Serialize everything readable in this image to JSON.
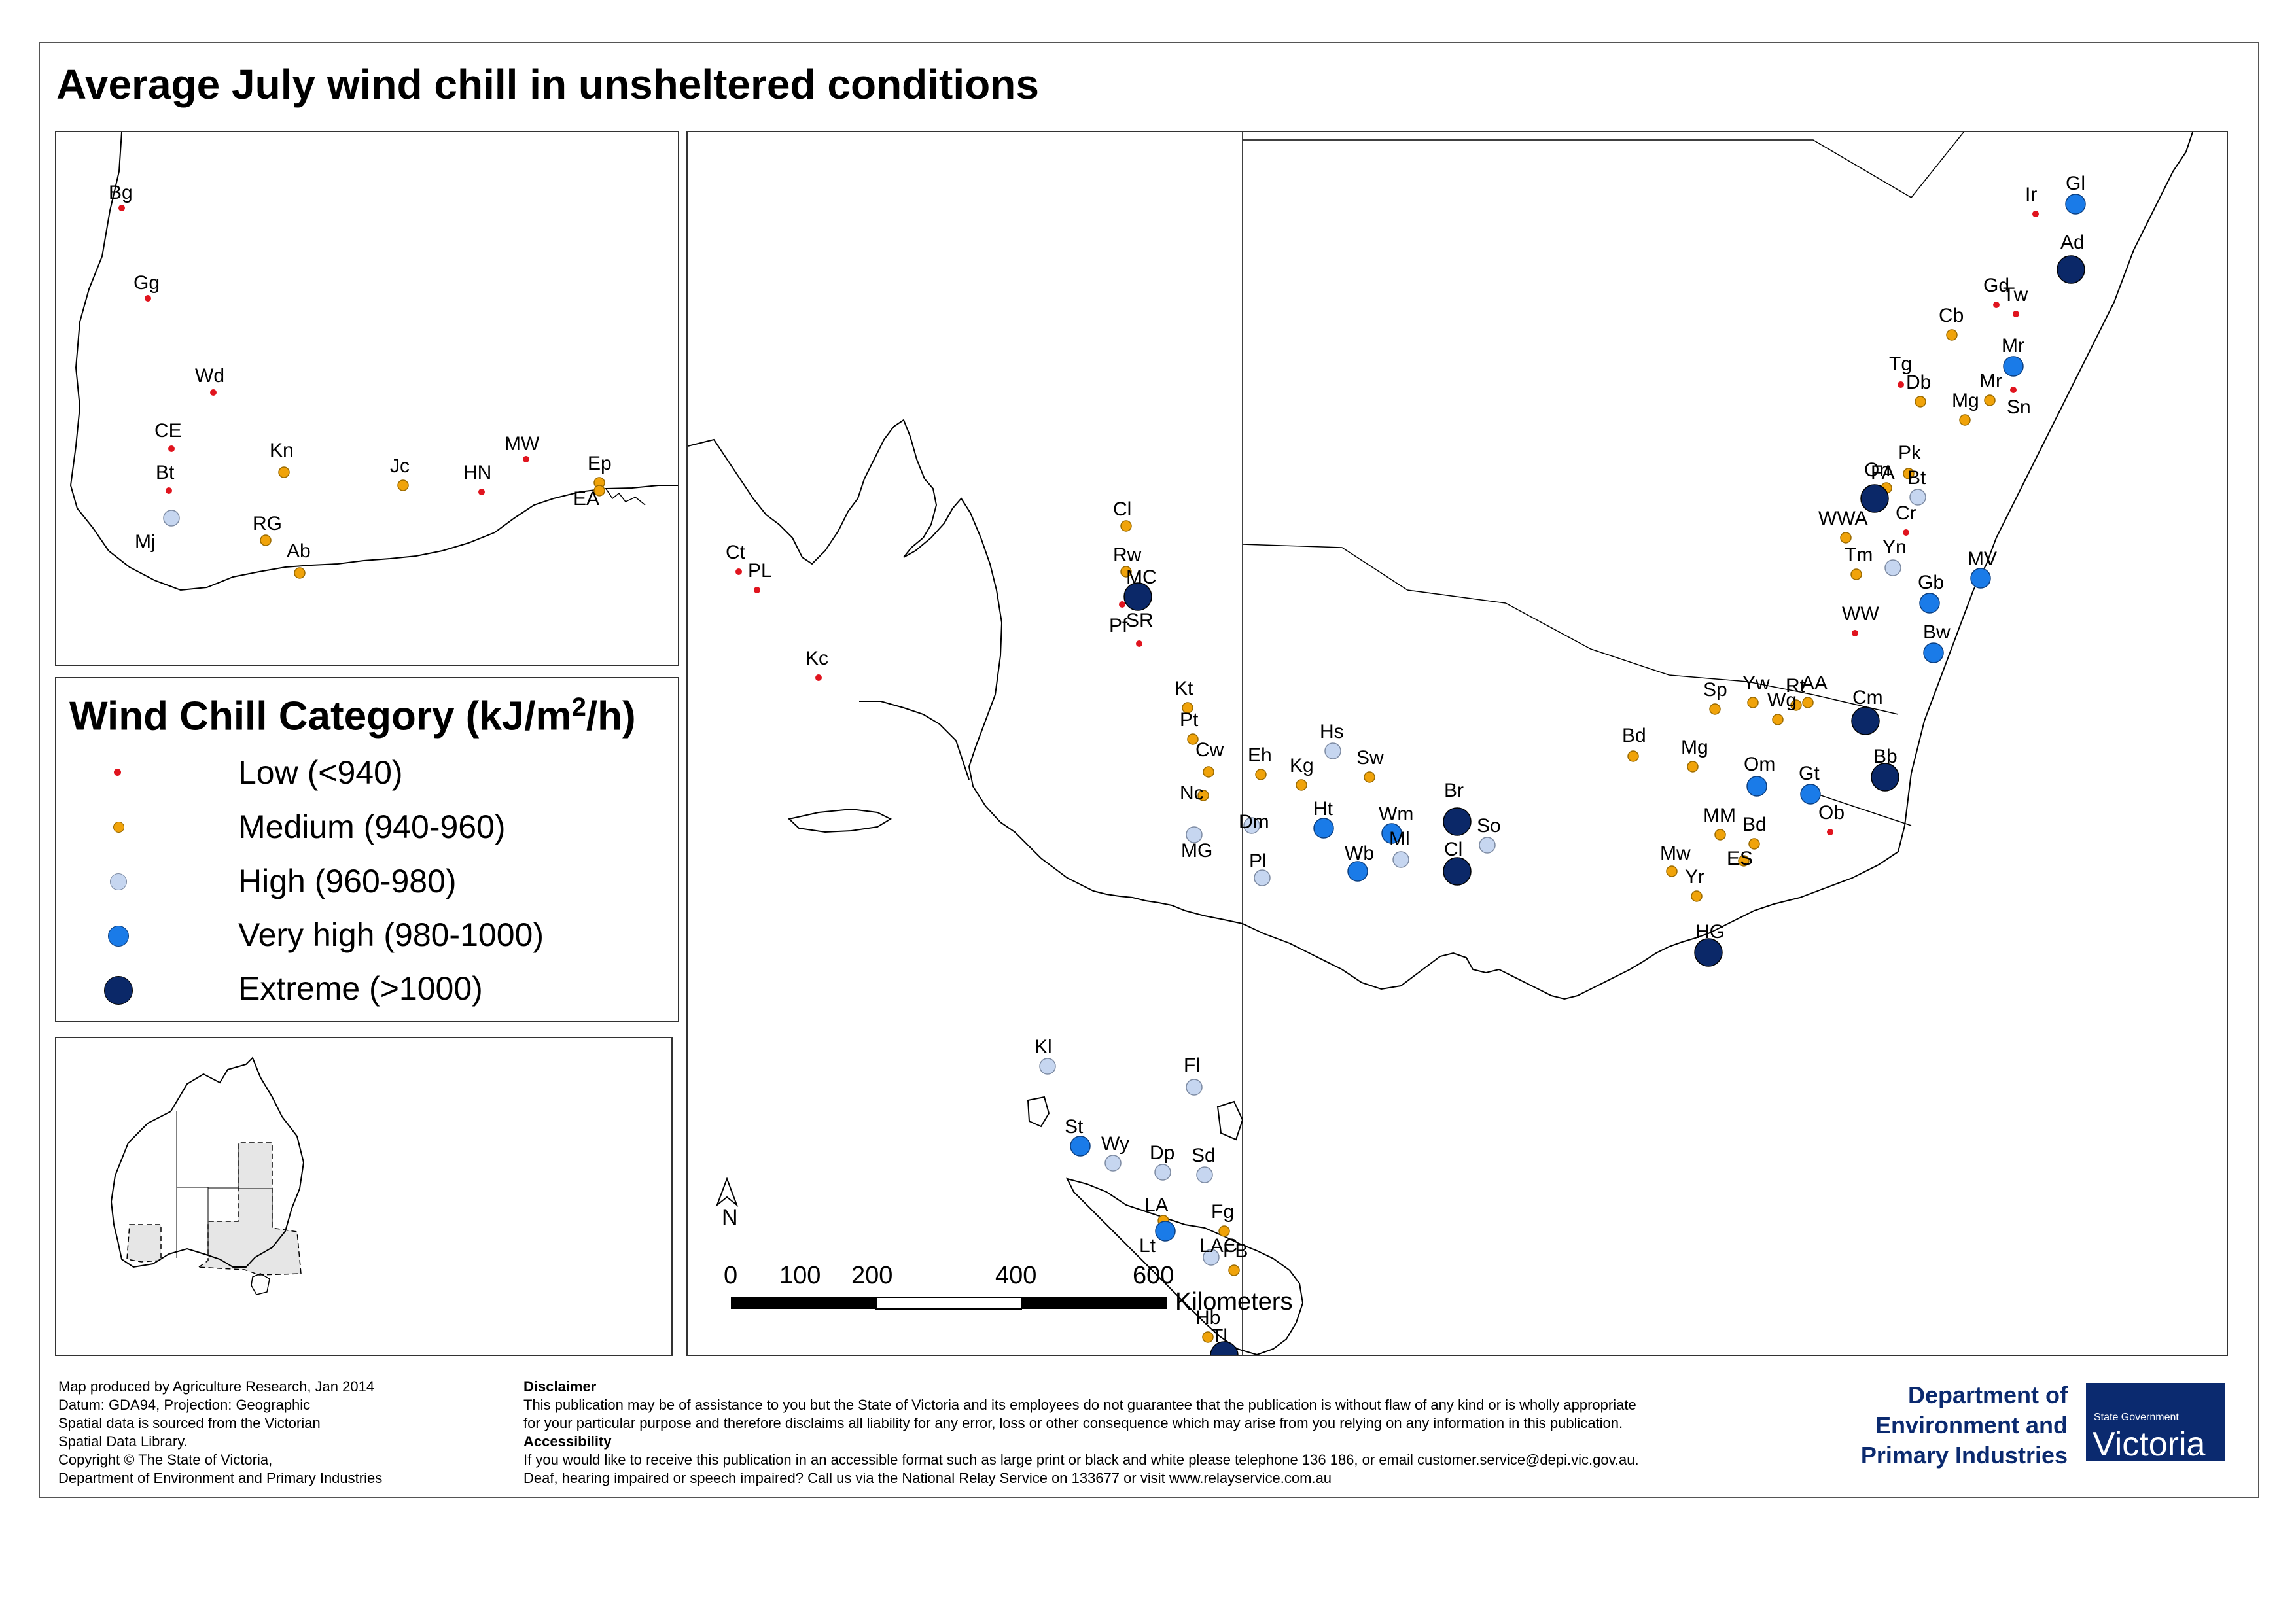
{
  "title": "Average July wind chill in unsheltered conditions",
  "legend": {
    "title_main": "Wind Chill Category (kJ/m",
    "title_sup": "2",
    "title_end": "/h)",
    "items": [
      {
        "key": "low",
        "label": "Low (<940)",
        "color": "#e0141e"
      },
      {
        "key": "medium",
        "label": "Medium (940-960)",
        "color": "#f0a30a"
      },
      {
        "key": "high",
        "label": "High (960-980)",
        "color": "#c6d6f0"
      },
      {
        "key": "very_high",
        "label": "Very high (980-1000)",
        "color": "#1a7be8"
      },
      {
        "key": "extreme",
        "label": "Extreme (>1000)",
        "color": "#0b2868"
      }
    ]
  },
  "scale_bar": {
    "ticks": [
      "0",
      "100",
      "200",
      "400",
      "600"
    ],
    "unit": "Kilometers",
    "north_label": "N"
  },
  "stations_inset_wa": [
    {
      "code": "Bg",
      "category": "low"
    },
    {
      "code": "Gg",
      "category": "low"
    },
    {
      "code": "Wd",
      "category": "low"
    },
    {
      "code": "CE",
      "category": "low"
    },
    {
      "code": "Bt",
      "category": "low"
    },
    {
      "code": "Mj",
      "category": "high"
    },
    {
      "code": "Kn",
      "category": "medium"
    },
    {
      "code": "RG",
      "category": "medium"
    },
    {
      "code": "Ab",
      "category": "medium"
    },
    {
      "code": "Jc",
      "category": "medium"
    },
    {
      "code": "HN",
      "category": "low"
    },
    {
      "code": "MW",
      "category": "low"
    },
    {
      "code": "Ep",
      "category": "medium"
    },
    {
      "code": "EA",
      "category": "medium"
    }
  ],
  "stations_main": [
    {
      "code": "Gl",
      "category": "very_high"
    },
    {
      "code": "Ir",
      "category": "low"
    },
    {
      "code": "Ad",
      "category": "extreme"
    },
    {
      "code": "Gd",
      "category": "low"
    },
    {
      "code": "Tw",
      "category": "low"
    },
    {
      "code": "Cb",
      "category": "medium"
    },
    {
      "code": "Mr",
      "category": "very_high"
    },
    {
      "code": "Sn",
      "category": "low"
    },
    {
      "code": "Tg",
      "category": "low"
    },
    {
      "code": "Db",
      "category": "medium"
    },
    {
      "code": "Mr",
      "category": "medium"
    },
    {
      "code": "Mg",
      "category": "medium"
    },
    {
      "code": "Pk",
      "category": "medium"
    },
    {
      "code": "FA",
      "category": "medium"
    },
    {
      "code": "On",
      "category": "extreme"
    },
    {
      "code": "Bt",
      "category": "high"
    },
    {
      "code": "Cr",
      "category": "low"
    },
    {
      "code": "WWA",
      "category": "medium"
    },
    {
      "code": "Yn",
      "category": "high"
    },
    {
      "code": "Tm",
      "category": "medium"
    },
    {
      "code": "MV",
      "category": "very_high"
    },
    {
      "code": "Gb",
      "category": "very_high"
    },
    {
      "code": "WW",
      "category": "low"
    },
    {
      "code": "Bw",
      "category": "very_high"
    },
    {
      "code": "Cm",
      "category": "extreme"
    },
    {
      "code": "Yw",
      "category": "medium"
    },
    {
      "code": "Rt",
      "category": "medium"
    },
    {
      "code": "AA",
      "category": "medium"
    },
    {
      "code": "Wg",
      "category": "medium"
    },
    {
      "code": "Sp",
      "category": "medium"
    },
    {
      "code": "Bd",
      "category": "medium"
    },
    {
      "code": "Mg",
      "category": "medium"
    },
    {
      "code": "Bb",
      "category": "extreme"
    },
    {
      "code": "Om",
      "category": "very_high"
    },
    {
      "code": "Gt",
      "category": "very_high"
    },
    {
      "code": "Ob",
      "category": "low"
    },
    {
      "code": "MM",
      "category": "medium"
    },
    {
      "code": "Bd",
      "category": "medium"
    },
    {
      "code": "ES",
      "category": "medium"
    },
    {
      "code": "Mw",
      "category": "medium"
    },
    {
      "code": "Yr",
      "category": "medium"
    },
    {
      "code": "HG",
      "category": "extreme"
    },
    {
      "code": "Br",
      "category": "extreme"
    },
    {
      "code": "So",
      "category": "high"
    },
    {
      "code": "Cl",
      "category": "extreme"
    },
    {
      "code": "Wm",
      "category": "very_high"
    },
    {
      "code": "Ml",
      "category": "high"
    },
    {
      "code": "Wb",
      "category": "very_high"
    },
    {
      "code": "Ht",
      "category": "very_high"
    },
    {
      "code": "Hs",
      "category": "high"
    },
    {
      "code": "Sw",
      "category": "medium"
    },
    {
      "code": "Kg",
      "category": "medium"
    },
    {
      "code": "Eh",
      "category": "medium"
    },
    {
      "code": "Dm",
      "category": "high"
    },
    {
      "code": "Pl",
      "category": "high"
    },
    {
      "code": "Kt",
      "category": "medium"
    },
    {
      "code": "Pt",
      "category": "medium"
    },
    {
      "code": "Cw",
      "category": "medium"
    },
    {
      "code": "Nc",
      "category": "medium"
    },
    {
      "code": "MG",
      "category": "high"
    },
    {
      "code": "Cl",
      "category": "medium"
    },
    {
      "code": "Rw",
      "category": "medium"
    },
    {
      "code": "MC",
      "category": "extreme"
    },
    {
      "code": "Pf",
      "category": "low"
    },
    {
      "code": "SR",
      "category": "low"
    },
    {
      "code": "Kc",
      "category": "low"
    },
    {
      "code": "Ct",
      "category": "low"
    },
    {
      "code": "PL",
      "category": "low"
    },
    {
      "code": "Kl",
      "category": "high"
    },
    {
      "code": "Fl",
      "category": "high"
    },
    {
      "code": "St",
      "category": "very_high"
    },
    {
      "code": "Wy",
      "category": "high"
    },
    {
      "code": "Dp",
      "category": "high"
    },
    {
      "code": "Sd",
      "category": "high"
    },
    {
      "code": "LA",
      "category": "medium"
    },
    {
      "code": "Lt",
      "category": "very_high"
    },
    {
      "code": "Fg",
      "category": "medium"
    },
    {
      "code": "LAC",
      "category": "high"
    },
    {
      "code": "FB",
      "category": "medium"
    },
    {
      "code": "Hb",
      "category": "medium"
    },
    {
      "code": "Tl",
      "category": "extreme"
    }
  ],
  "credits": [
    "Map produced by Agriculture Research, Jan 2014",
    "Datum: GDA94, Projection: Geographic",
    "Spatial data is sourced from the Victorian",
    "Spatial Data Library.",
    "Copyright © The State of Victoria,",
    "Department of Environment and Primary Industries"
  ],
  "disclaimer": {
    "heading": "Disclaimer",
    "lines": [
      "This publication may be of assistance to you but the State of Victoria and its employees do not guarantee that the publication is without flaw of any kind or is wholly appropriate",
      "for your particular purpose and therefore disclaims all liability for any error, loss or other consequence which may arise from you relying on any information in this publication."
    ]
  },
  "accessibility": {
    "heading": "Accessibility",
    "lines": [
      "If you would like to receive this publication in an accessible format such as large print or black and white please telephone 136 186, or email customer.service@depi.vic.gov.au.",
      "Deaf, hearing impaired or speech impaired? Call us via the National Relay Service on 133677 or visit www.relayservice.com.au"
    ]
  },
  "department": [
    "Department of",
    "Environment and",
    "Primary Industries"
  ],
  "vic_logo": {
    "small": "State Government",
    "big": "Victoria"
  }
}
